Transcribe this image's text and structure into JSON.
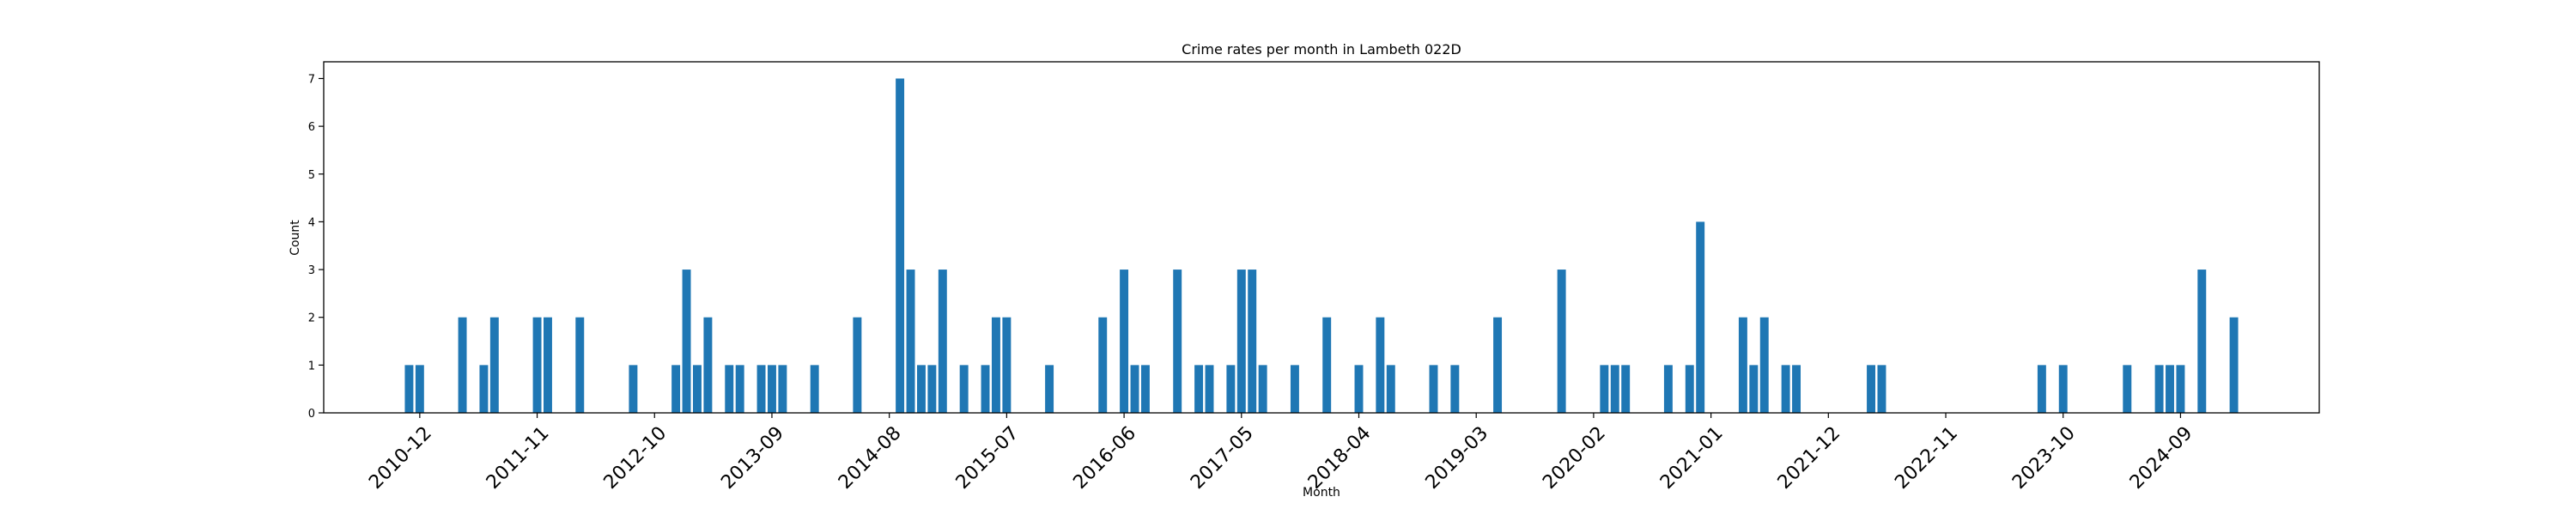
{
  "chart_data": {
    "type": "bar",
    "title": "Crime rates per month in Lambeth 022D",
    "xlabel": "Month",
    "ylabel": "Count",
    "ylim": [
      0,
      7.35
    ],
    "yticks": [
      0,
      1,
      2,
      3,
      4,
      5,
      6,
      7
    ],
    "xlim": [
      "2010-03",
      "2025-10"
    ],
    "xticks": [
      "2010-12",
      "2011-11",
      "2012-10",
      "2013-09",
      "2014-08",
      "2015-07",
      "2016-06",
      "2017-05",
      "2018-04",
      "2019-03",
      "2020-02",
      "2021-01",
      "2021-12",
      "2022-11",
      "2023-10",
      "2024-09"
    ],
    "grid": false,
    "bar_color": "#1f77b4",
    "points": [
      {
        "x": "2010-11",
        "y": 1
      },
      {
        "x": "2010-12",
        "y": 1
      },
      {
        "x": "2011-04",
        "y": 2
      },
      {
        "x": "2011-06",
        "y": 1
      },
      {
        "x": "2011-07",
        "y": 2
      },
      {
        "x": "2011-11",
        "y": 2
      },
      {
        "x": "2011-12",
        "y": 2
      },
      {
        "x": "2012-03",
        "y": 2
      },
      {
        "x": "2012-08",
        "y": 1
      },
      {
        "x": "2012-12",
        "y": 1
      },
      {
        "x": "2013-01",
        "y": 3
      },
      {
        "x": "2013-02",
        "y": 1
      },
      {
        "x": "2013-03",
        "y": 2
      },
      {
        "x": "2013-05",
        "y": 1
      },
      {
        "x": "2013-06",
        "y": 1
      },
      {
        "x": "2013-08",
        "y": 1
      },
      {
        "x": "2013-09",
        "y": 1
      },
      {
        "x": "2013-10",
        "y": 1
      },
      {
        "x": "2014-01",
        "y": 1
      },
      {
        "x": "2014-05",
        "y": 2
      },
      {
        "x": "2014-09",
        "y": 7
      },
      {
        "x": "2014-10",
        "y": 3
      },
      {
        "x": "2014-11",
        "y": 1
      },
      {
        "x": "2014-12",
        "y": 1
      },
      {
        "x": "2015-01",
        "y": 3
      },
      {
        "x": "2015-03",
        "y": 1
      },
      {
        "x": "2015-05",
        "y": 1
      },
      {
        "x": "2015-06",
        "y": 2
      },
      {
        "x": "2015-07",
        "y": 2
      },
      {
        "x": "2015-11",
        "y": 1
      },
      {
        "x": "2016-04",
        "y": 2
      },
      {
        "x": "2016-06",
        "y": 3
      },
      {
        "x": "2016-07",
        "y": 1
      },
      {
        "x": "2016-08",
        "y": 1
      },
      {
        "x": "2016-11",
        "y": 3
      },
      {
        "x": "2017-01",
        "y": 1
      },
      {
        "x": "2017-02",
        "y": 1
      },
      {
        "x": "2017-04",
        "y": 1
      },
      {
        "x": "2017-05",
        "y": 3
      },
      {
        "x": "2017-06",
        "y": 3
      },
      {
        "x": "2017-07",
        "y": 1
      },
      {
        "x": "2017-10",
        "y": 1
      },
      {
        "x": "2018-01",
        "y": 2
      },
      {
        "x": "2018-04",
        "y": 1
      },
      {
        "x": "2018-06",
        "y": 2
      },
      {
        "x": "2018-07",
        "y": 1
      },
      {
        "x": "2018-11",
        "y": 1
      },
      {
        "x": "2019-01",
        "y": 1
      },
      {
        "x": "2019-05",
        "y": 2
      },
      {
        "x": "2019-11",
        "y": 3
      },
      {
        "x": "2020-03",
        "y": 1
      },
      {
        "x": "2020-04",
        "y": 1
      },
      {
        "x": "2020-05",
        "y": 1
      },
      {
        "x": "2020-09",
        "y": 1
      },
      {
        "x": "2020-11",
        "y": 1
      },
      {
        "x": "2020-12",
        "y": 4
      },
      {
        "x": "2021-04",
        "y": 2
      },
      {
        "x": "2021-05",
        "y": 1
      },
      {
        "x": "2021-06",
        "y": 2
      },
      {
        "x": "2021-08",
        "y": 1
      },
      {
        "x": "2021-09",
        "y": 1
      },
      {
        "x": "2022-04",
        "y": 1
      },
      {
        "x": "2022-05",
        "y": 1
      },
      {
        "x": "2023-08",
        "y": 1
      },
      {
        "x": "2023-10",
        "y": 1
      },
      {
        "x": "2024-04",
        "y": 1
      },
      {
        "x": "2024-07",
        "y": 1
      },
      {
        "x": "2024-08",
        "y": 1
      },
      {
        "x": "2024-09",
        "y": 1
      },
      {
        "x": "2024-11",
        "y": 3
      },
      {
        "x": "2025-02",
        "y": 2
      }
    ]
  }
}
